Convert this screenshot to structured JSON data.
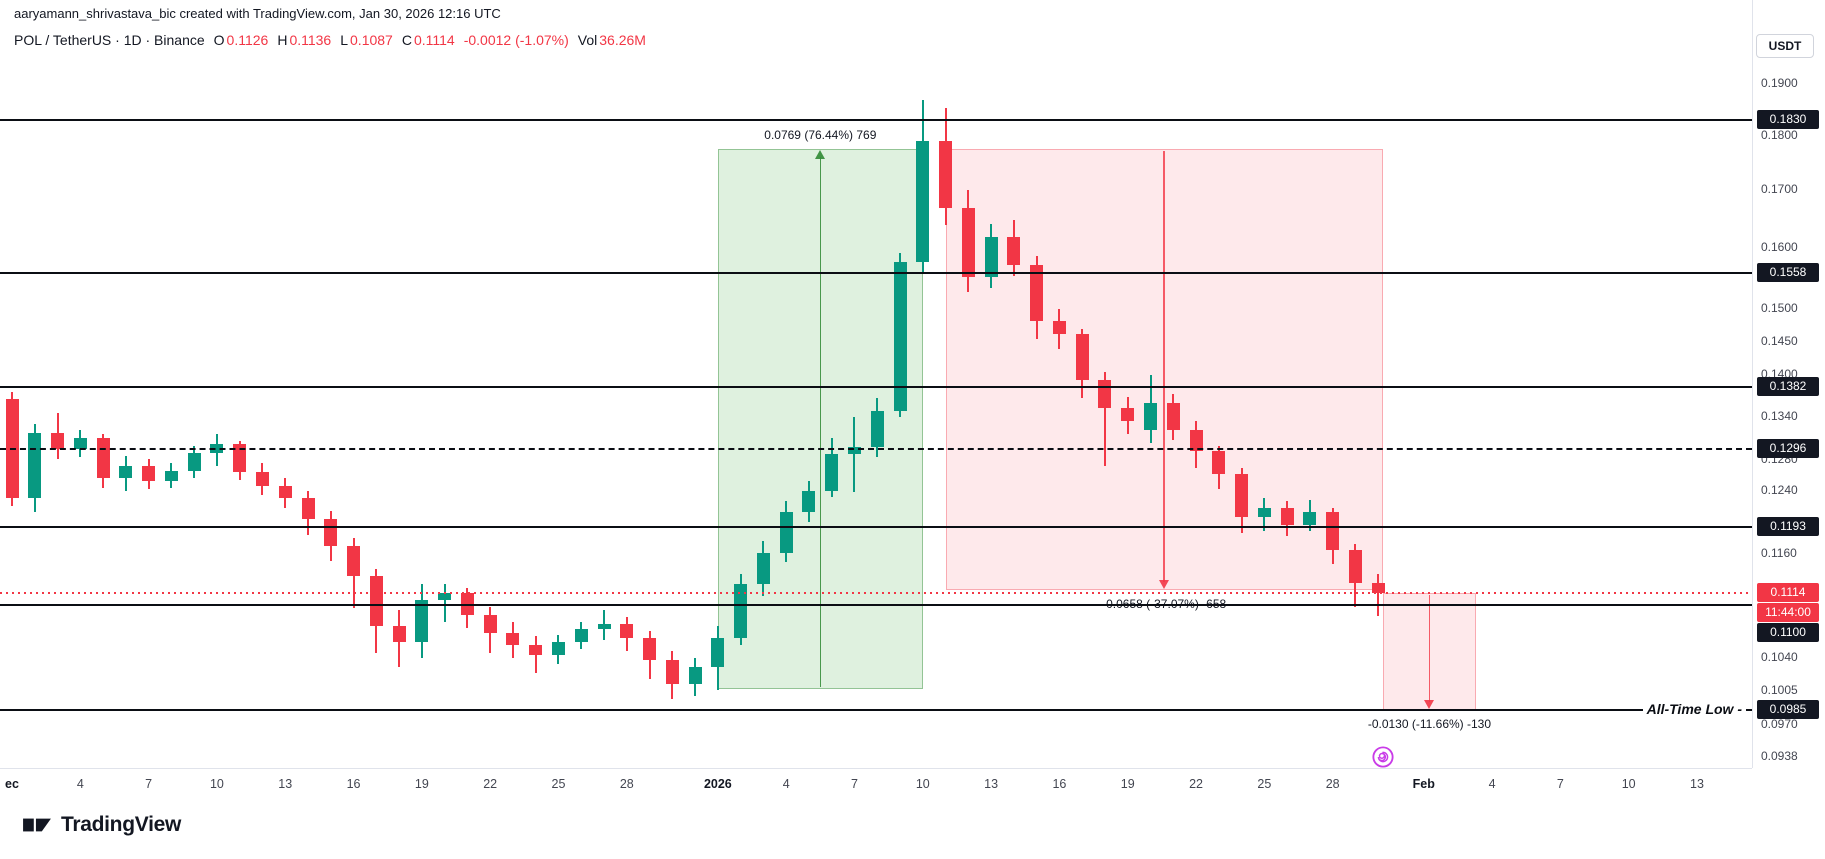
{
  "meta": {
    "attribution": "aaryamann_shrivastava_bic created with TradingView.com, Jan 30, 2026 12:16 UTC"
  },
  "toolbar": {
    "currency_button": "USDT"
  },
  "legend": {
    "title": "POL / TetherUS · 1D · Binance",
    "items": [
      {
        "label": "O",
        "value": "0.1126"
      },
      {
        "label": "H",
        "value": "0.1136"
      },
      {
        "label": "L",
        "value": "0.1087"
      },
      {
        "label": "C",
        "value": "0.1114"
      }
    ],
    "change": "-0.0012 (-1.07%)",
    "vol_label": "Vol",
    "vol_value": "36.26M"
  },
  "annotations": {
    "all_time_low": "All-Time Low -"
  },
  "footer": {
    "brand": "TradingView"
  },
  "colors": {
    "up": "#089981",
    "down": "#f23645",
    "long_zone": "#4caf50",
    "short_zone": "#f23645",
    "drawing_line": "#0b0e14",
    "last_price": "#f23645",
    "badge_dark": "#131722",
    "marker": "#c93ce8"
  },
  "price_axis": {
    "ticks": [
      {
        "text": "0.1900",
        "price": 0.19
      },
      {
        "text": "0.1800",
        "price": 0.18
      },
      {
        "text": "0.1700",
        "price": 0.17
      },
      {
        "text": "0.1600",
        "price": 0.16
      },
      {
        "text": "0.1500",
        "price": 0.15
      },
      {
        "text": "0.1450",
        "price": 0.145
      },
      {
        "text": "0.1400",
        "price": 0.14
      },
      {
        "text": "0.1340",
        "price": 0.134
      },
      {
        "text": "0.1280",
        "price": 0.128
      },
      {
        "text": "0.1240",
        "price": 0.124
      },
      {
        "text": "0.1160",
        "price": 0.116
      },
      {
        "text": "0.1040",
        "price": 0.104
      },
      {
        "text": "0.1005",
        "price": 0.1005
      },
      {
        "text": "0.0970",
        "price": 0.097
      },
      {
        "text": "0.0938",
        "price": 0.0938
      }
    ],
    "badges": [
      {
        "text": "0.1830",
        "price": 0.183,
        "style": "dark"
      },
      {
        "text": "0.1558",
        "price": 0.1558,
        "style": "dark"
      },
      {
        "text": "0.1382",
        "price": 0.1382,
        "style": "dark"
      },
      {
        "text": "0.1296",
        "price": 0.1296,
        "style": "dark"
      },
      {
        "text": "0.1193",
        "price": 0.1193,
        "style": "dark"
      },
      {
        "text": "0.1114",
        "price": 0.1114,
        "style": "last"
      },
      {
        "text": "11:44:00",
        "style": "countdown"
      },
      {
        "text": "0.1100",
        "price": 0.11,
        "style": "dark"
      },
      {
        "text": "0.0985",
        "price": 0.0985,
        "style": "dark"
      }
    ]
  },
  "time_axis": {
    "labels": [
      {
        "label": "ec",
        "day": 0,
        "bold": true
      },
      {
        "label": "4",
        "day": 3
      },
      {
        "label": "7",
        "day": 6
      },
      {
        "label": "10",
        "day": 9
      },
      {
        "label": "13",
        "day": 12
      },
      {
        "label": "16",
        "day": 15
      },
      {
        "label": "19",
        "day": 18
      },
      {
        "label": "22",
        "day": 21
      },
      {
        "label": "25",
        "day": 24
      },
      {
        "label": "28",
        "day": 27
      },
      {
        "label": "2026",
        "day": 31,
        "bold": true
      },
      {
        "label": "4",
        "day": 34
      },
      {
        "label": "7",
        "day": 37
      },
      {
        "label": "10",
        "day": 40
      },
      {
        "label": "13",
        "day": 43
      },
      {
        "label": "16",
        "day": 46
      },
      {
        "label": "19",
        "day": 49
      },
      {
        "label": "22",
        "day": 52
      },
      {
        "label": "25",
        "day": 55
      },
      {
        "label": "28",
        "day": 58
      },
      {
        "label": "Feb",
        "day": 62,
        "bold": true
      },
      {
        "label": "4",
        "day": 65
      },
      {
        "label": "7",
        "day": 68
      },
      {
        "label": "10",
        "day": 71
      },
      {
        "label": "13",
        "day": 74
      }
    ]
  },
  "chart_data": {
    "type": "candlestick",
    "symbol": "POL / TetherUS",
    "interval": "1D",
    "exchange": "Binance",
    "price_scale": "log",
    "visible_price_range": [
      0.0927,
      0.2075
    ],
    "ohlc_current": {
      "o": 0.1126,
      "h": 0.1136,
      "l": 0.1087,
      "c": 0.1114,
      "change": -0.0012,
      "change_pct": -1.07,
      "volume": "36.26M"
    },
    "last_price": 0.1114,
    "countdown": "11:44:00",
    "horizontal_lines": [
      0.183,
      0.1558,
      0.1382,
      0.1193,
      0.11,
      0.0985
    ],
    "dashed_lines": [
      0.1296
    ],
    "positions": [
      {
        "type": "long",
        "from_day": 31,
        "to_day": 40,
        "top": 0.1775,
        "bottom": 0.1007,
        "label": "0.0769 (76.44%) 769"
      },
      {
        "type": "short",
        "from_day": 41,
        "to_day": 60.2,
        "top": 0.1775,
        "bottom": 0.1117,
        "label": "-0.0658 (-37.07%) -658"
      },
      {
        "type": "short",
        "from_day": 60.2,
        "to_day": 64.3,
        "top": 0.1114,
        "bottom": 0.0985,
        "label": "-0.0130 (-11.66%) -130"
      }
    ],
    "marker": {
      "day": 60.2,
      "name": "spiral-sticker"
    },
    "candles": [
      {
        "d": "Dec 1",
        "o": 0.1365,
        "h": 0.1375,
        "l": 0.122,
        "c": 0.123
      },
      {
        "d": "Dec 2",
        "o": 0.123,
        "h": 0.133,
        "l": 0.1212,
        "c": 0.1318
      },
      {
        "d": "Dec 3",
        "o": 0.1318,
        "h": 0.1345,
        "l": 0.1282,
        "c": 0.1296
      },
      {
        "d": "Dec 4",
        "o": 0.1296,
        "h": 0.1322,
        "l": 0.1284,
        "c": 0.131
      },
      {
        "d": "Dec 5",
        "o": 0.131,
        "h": 0.1316,
        "l": 0.1244,
        "c": 0.1256
      },
      {
        "d": "Dec 6",
        "o": 0.1256,
        "h": 0.1286,
        "l": 0.124,
        "c": 0.1272
      },
      {
        "d": "Dec 7",
        "o": 0.1272,
        "h": 0.1282,
        "l": 0.1242,
        "c": 0.1252
      },
      {
        "d": "Dec 8",
        "o": 0.1252,
        "h": 0.1276,
        "l": 0.1244,
        "c": 0.1266
      },
      {
        "d": "Dec 9",
        "o": 0.1266,
        "h": 0.13,
        "l": 0.1256,
        "c": 0.129
      },
      {
        "d": "Dec 10",
        "o": 0.129,
        "h": 0.1316,
        "l": 0.1272,
        "c": 0.1302
      },
      {
        "d": "Dec 11",
        "o": 0.1302,
        "h": 0.1306,
        "l": 0.1254,
        "c": 0.1264
      },
      {
        "d": "Dec 12",
        "o": 0.1264,
        "h": 0.1276,
        "l": 0.1234,
        "c": 0.1246
      },
      {
        "d": "Dec 13",
        "o": 0.1246,
        "h": 0.1256,
        "l": 0.1218,
        "c": 0.123
      },
      {
        "d": "Dec 14",
        "o": 0.123,
        "h": 0.124,
        "l": 0.1184,
        "c": 0.1204
      },
      {
        "d": "Dec 15",
        "o": 0.1204,
        "h": 0.1214,
        "l": 0.1152,
        "c": 0.117
      },
      {
        "d": "Dec 16",
        "o": 0.117,
        "h": 0.118,
        "l": 0.1096,
        "c": 0.1134
      },
      {
        "d": "Dec 17",
        "o": 0.1134,
        "h": 0.1142,
        "l": 0.1046,
        "c": 0.1076
      },
      {
        "d": "Dec 18",
        "o": 0.1076,
        "h": 0.1094,
        "l": 0.103,
        "c": 0.1058
      },
      {
        "d": "Dec 19",
        "o": 0.1058,
        "h": 0.1124,
        "l": 0.104,
        "c": 0.1106
      },
      {
        "d": "Dec 20",
        "o": 0.1106,
        "h": 0.1124,
        "l": 0.108,
        "c": 0.1114
      },
      {
        "d": "Dec 21",
        "o": 0.1114,
        "h": 0.112,
        "l": 0.1074,
        "c": 0.1088
      },
      {
        "d": "Dec 22",
        "o": 0.1088,
        "h": 0.1098,
        "l": 0.1046,
        "c": 0.1068
      },
      {
        "d": "Dec 23",
        "o": 0.1068,
        "h": 0.108,
        "l": 0.104,
        "c": 0.1054
      },
      {
        "d": "Dec 24",
        "o": 0.1054,
        "h": 0.1064,
        "l": 0.1024,
        "c": 0.1044
      },
      {
        "d": "Dec 25",
        "o": 0.1044,
        "h": 0.1066,
        "l": 0.1034,
        "c": 0.1058
      },
      {
        "d": "Dec 26",
        "o": 0.1058,
        "h": 0.108,
        "l": 0.105,
        "c": 0.1072
      },
      {
        "d": "Dec 27",
        "o": 0.1072,
        "h": 0.1094,
        "l": 0.106,
        "c": 0.1078
      },
      {
        "d": "Dec 28",
        "o": 0.1078,
        "h": 0.1086,
        "l": 0.1048,
        "c": 0.1062
      },
      {
        "d": "Dec 29",
        "o": 0.1062,
        "h": 0.107,
        "l": 0.1018,
        "c": 0.1038
      },
      {
        "d": "Dec 30",
        "o": 0.1038,
        "h": 0.1048,
        "l": 0.0996,
        "c": 0.1012
      },
      {
        "d": "Dec 31",
        "o": 0.1012,
        "h": 0.104,
        "l": 0.1,
        "c": 0.103
      },
      {
        "d": "Jan 1",
        "o": 0.103,
        "h": 0.1076,
        "l": 0.1006,
        "c": 0.1062
      },
      {
        "d": "Jan 2",
        "o": 0.1062,
        "h": 0.1136,
        "l": 0.1054,
        "c": 0.1124
      },
      {
        "d": "Jan 3",
        "o": 0.1124,
        "h": 0.1176,
        "l": 0.111,
        "c": 0.1162
      },
      {
        "d": "Jan 4",
        "o": 0.1162,
        "h": 0.1226,
        "l": 0.115,
        "c": 0.1212
      },
      {
        "d": "Jan 5",
        "o": 0.1212,
        "h": 0.1252,
        "l": 0.12,
        "c": 0.124
      },
      {
        "d": "Jan 6",
        "o": 0.124,
        "h": 0.131,
        "l": 0.1232,
        "c": 0.1288
      },
      {
        "d": "Jan 7",
        "o": 0.1288,
        "h": 0.134,
        "l": 0.1238,
        "c": 0.1298
      },
      {
        "d": "Jan 8",
        "o": 0.1298,
        "h": 0.1366,
        "l": 0.1284,
        "c": 0.1348
      },
      {
        "d": "Jan 9",
        "o": 0.1348,
        "h": 0.1592,
        "l": 0.134,
        "c": 0.1576
      },
      {
        "d": "Jan 10",
        "o": 0.1576,
        "h": 0.1868,
        "l": 0.156,
        "c": 0.179
      },
      {
        "d": "Jan 11",
        "o": 0.179,
        "h": 0.1852,
        "l": 0.1638,
        "c": 0.1668
      },
      {
        "d": "Jan 12",
        "o": 0.1668,
        "h": 0.17,
        "l": 0.1528,
        "c": 0.1552
      },
      {
        "d": "Jan 13",
        "o": 0.1552,
        "h": 0.164,
        "l": 0.1534,
        "c": 0.1618
      },
      {
        "d": "Jan 14",
        "o": 0.1618,
        "h": 0.1648,
        "l": 0.1554,
        "c": 0.1572
      },
      {
        "d": "Jan 15",
        "o": 0.1572,
        "h": 0.1586,
        "l": 0.1454,
        "c": 0.1482
      },
      {
        "d": "Jan 16",
        "o": 0.1482,
        "h": 0.15,
        "l": 0.1438,
        "c": 0.1462
      },
      {
        "d": "Jan 17",
        "o": 0.1462,
        "h": 0.147,
        "l": 0.1366,
        "c": 0.1392
      },
      {
        "d": "Jan 18",
        "o": 0.1392,
        "h": 0.1404,
        "l": 0.1272,
        "c": 0.1352
      },
      {
        "d": "Jan 19",
        "o": 0.1352,
        "h": 0.1368,
        "l": 0.1316,
        "c": 0.1334
      },
      {
        "d": "Jan 20",
        "o": 0.1322,
        "h": 0.14,
        "l": 0.1304,
        "c": 0.136
      },
      {
        "d": "Jan 21",
        "o": 0.136,
        "h": 0.1372,
        "l": 0.1308,
        "c": 0.1322
      },
      {
        "d": "Jan 22",
        "o": 0.1322,
        "h": 0.1334,
        "l": 0.127,
        "c": 0.1292
      },
      {
        "d": "Jan 23",
        "o": 0.1292,
        "h": 0.13,
        "l": 0.1242,
        "c": 0.1262
      },
      {
        "d": "Jan 24",
        "o": 0.1262,
        "h": 0.127,
        "l": 0.1186,
        "c": 0.1206
      },
      {
        "d": "Jan 25",
        "o": 0.1206,
        "h": 0.123,
        "l": 0.1188,
        "c": 0.1218
      },
      {
        "d": "Jan 26",
        "o": 0.1218,
        "h": 0.1226,
        "l": 0.1182,
        "c": 0.1196
      },
      {
        "d": "Jan 27",
        "o": 0.1196,
        "h": 0.1228,
        "l": 0.1188,
        "c": 0.1212
      },
      {
        "d": "Jan 28",
        "o": 0.1212,
        "h": 0.1218,
        "l": 0.1148,
        "c": 0.1165
      },
      {
        "d": "Jan 29",
        "o": 0.1165,
        "h": 0.1172,
        "l": 0.1098,
        "c": 0.1126
      },
      {
        "d": "Jan 30",
        "o": 0.1126,
        "h": 0.1136,
        "l": 0.1087,
        "c": 0.1114
      }
    ]
  }
}
